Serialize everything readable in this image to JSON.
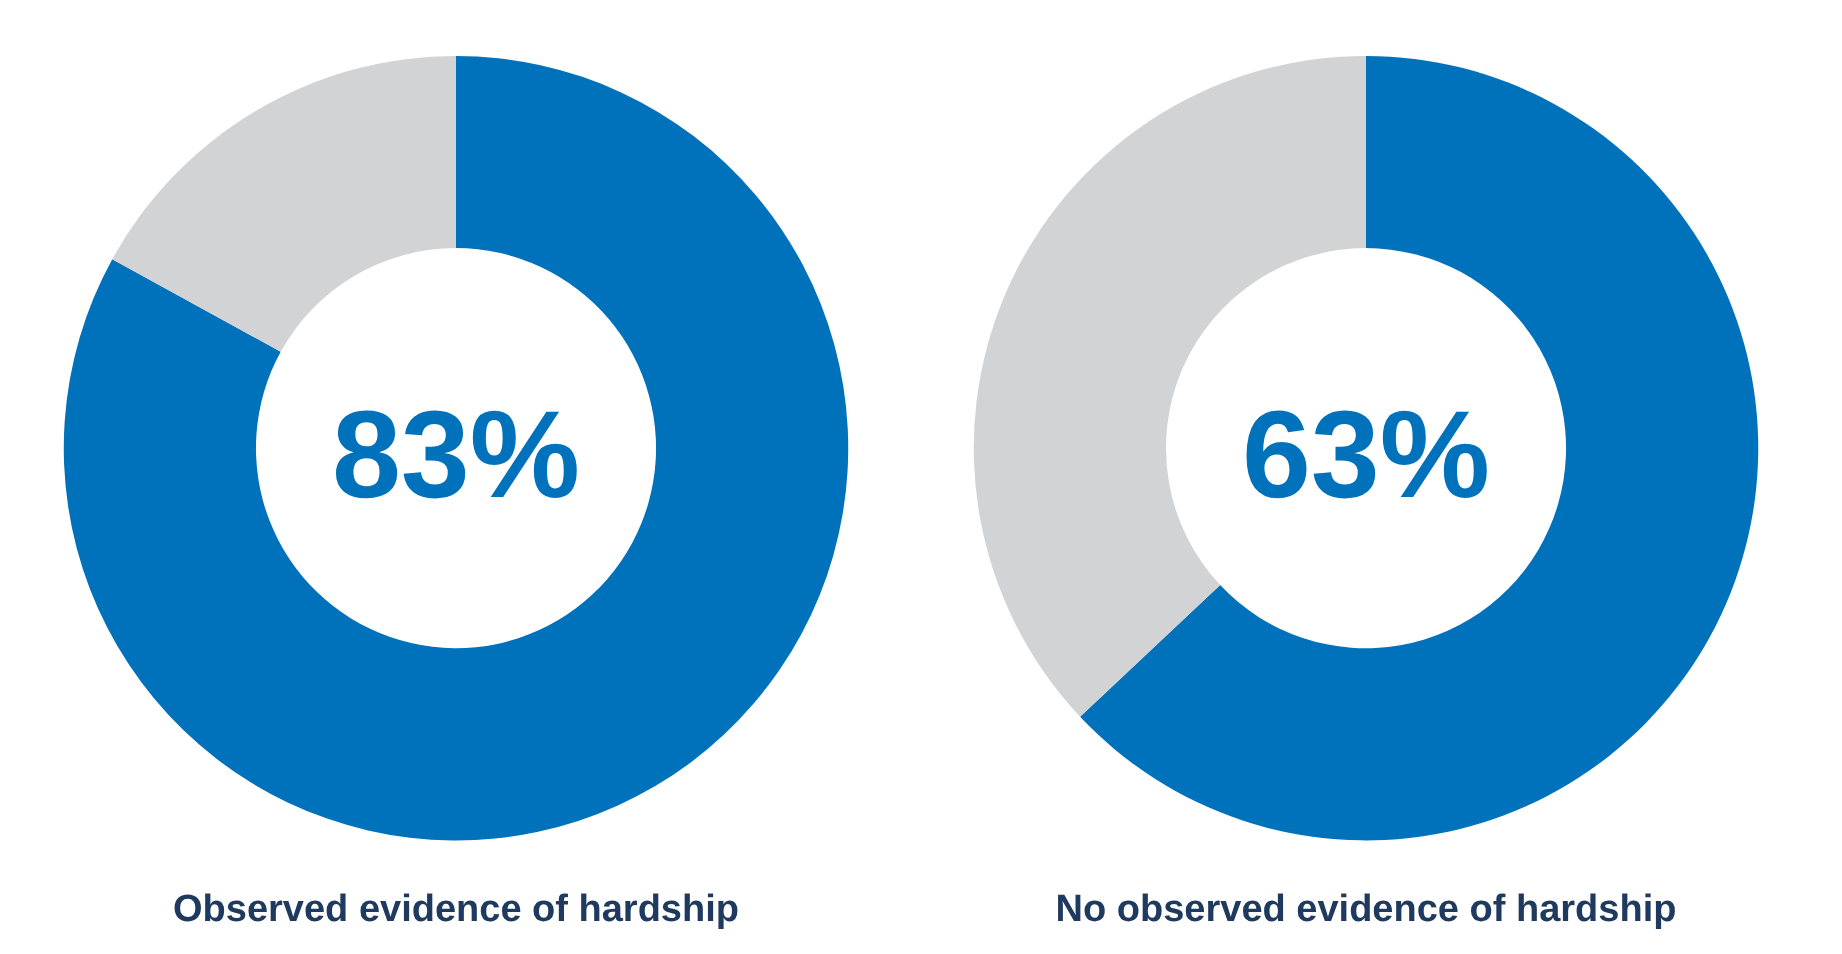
{
  "chart_data": [
    {
      "type": "donut",
      "title": "Observed evidence of hardship",
      "categories": [
        null,
        null
      ],
      "values": [
        83,
        17
      ],
      "colors": [
        "#0072bc",
        "#d1d3d4"
      ],
      "value_labels": [
        "83%",
        null
      ]
    },
    {
      "type": "donut",
      "title": "No observed evidence of hardship",
      "categories": [
        null,
        null
      ],
      "values": [
        63,
        37
      ],
      "colors": [
        "#0072bc",
        "#d1d3d4"
      ],
      "value_labels": [
        "63%",
        null
      ]
    }
  ]
}
